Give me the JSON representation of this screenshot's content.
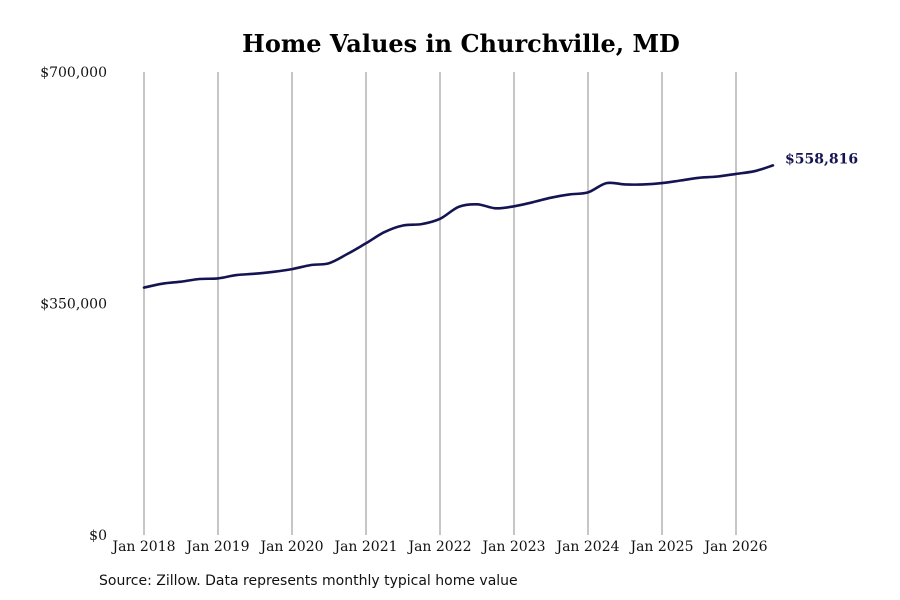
{
  "chart_data": {
    "type": "line",
    "title": "Home Values in Churchville, MD",
    "xlabel": "",
    "ylabel": "",
    "ylim": [
      0,
      700000
    ],
    "y_ticks": [
      {
        "value": 0,
        "label": "$0"
      },
      {
        "value": 350000,
        "label": "$350,000"
      },
      {
        "value": 700000,
        "label": "$700,000"
      }
    ],
    "x_ticks": [
      {
        "value": "2018-01",
        "label": "Jan 2018"
      },
      {
        "value": "2019-01",
        "label": "Jan 2019"
      },
      {
        "value": "2020-01",
        "label": "Jan 2020"
      },
      {
        "value": "2021-01",
        "label": "Jan 2021"
      },
      {
        "value": "2022-01",
        "label": "Jan 2022"
      },
      {
        "value": "2023-01",
        "label": "Jan 2023"
      },
      {
        "value": "2024-01",
        "label": "Jan 2024"
      },
      {
        "value": "2025-01",
        "label": "Jan 2025"
      },
      {
        "value": "2026-01",
        "label": "Jan 2026"
      }
    ],
    "grid": "vertical",
    "legend": "none",
    "line_color": "#141452",
    "series": [
      {
        "x": [
          "2018-01",
          "2018-04",
          "2018-07",
          "2018-10",
          "2019-01",
          "2019-04",
          "2019-07",
          "2019-10",
          "2020-01",
          "2020-04",
          "2020-07",
          "2020-10",
          "2021-01",
          "2021-04",
          "2021-07",
          "2021-10",
          "2022-01",
          "2022-04",
          "2022-07",
          "2022-10",
          "2023-01",
          "2023-04",
          "2023-07",
          "2023-10",
          "2024-01",
          "2024-04",
          "2024-07",
          "2024-10",
          "2025-01",
          "2025-04",
          "2025-07",
          "2025-10",
          "2026-01",
          "2026-04",
          "2026-07"
        ],
        "values": [
          374000,
          380000,
          383000,
          387000,
          388000,
          393000,
          395000,
          398000,
          402000,
          408000,
          411000,
          425000,
          441000,
          458000,
          468000,
          470000,
          478000,
          496000,
          500000,
          494000,
          497000,
          503000,
          510000,
          515000,
          518000,
          532000,
          530000,
          530000,
          532000,
          536000,
          540000,
          542000,
          546000,
          550000,
          558816
        ]
      }
    ],
    "end_label": "$558,816"
  },
  "source": "Source: Zillow. Data represents monthly typical home value"
}
